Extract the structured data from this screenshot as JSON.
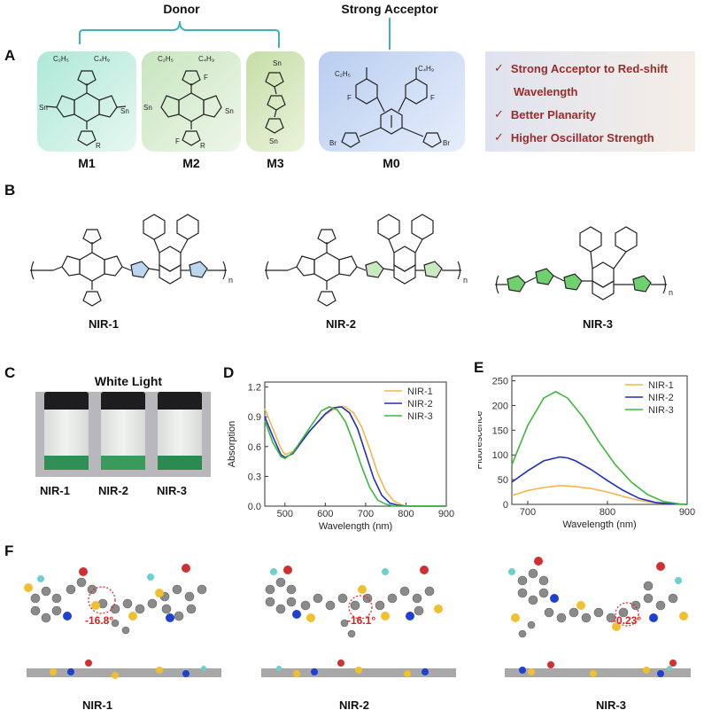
{
  "header": {
    "donor_label": "Donor",
    "acceptor_label": "Strong Acceptor"
  },
  "panel_labels": [
    "A",
    "B",
    "C",
    "D",
    "E",
    "F"
  ],
  "panel_a": {
    "monomers": [
      {
        "label": "M1",
        "color": "#bfe8dc"
      },
      {
        "label": "M2",
        "color": "#d6e8cc"
      },
      {
        "label": "M3",
        "color": "#cfe2b4"
      },
      {
        "label": "M0",
        "color": "#c9d8f2"
      }
    ],
    "substituent_text": {
      "c2h5": "C₂H₅",
      "c4h9": "C₄H₉",
      "sn": "Sn",
      "br": "Br",
      "f": "F",
      "r": "R"
    },
    "features": [
      "Strong Acceptor to Red-shift",
      "Wavelength",
      "Better Planarity",
      "Higher Oscillator Strength"
    ],
    "check_mark": "✓"
  },
  "panel_b": {
    "polymers": [
      "NIR-1",
      "NIR-2",
      "NIR-3"
    ],
    "repeat_label": "n"
  },
  "panel_c": {
    "title": "White Light",
    "vials": [
      "NIR-1",
      "NIR-2",
      "NIR-3"
    ]
  },
  "chart_data": [
    {
      "type": "line",
      "panel": "D",
      "xlabel": "Wavelength (nm)",
      "ylabel": "Absorption",
      "xlim": [
        450,
        900
      ],
      "ylim": [
        0.0,
        1.25
      ],
      "xticks": [
        "500",
        "600",
        "700",
        "800",
        "900"
      ],
      "yticks": [
        "0.0",
        "0.3",
        "0.6",
        "0.9",
        "1.2"
      ],
      "legend": "top-right",
      "series": [
        {
          "name": "NIR-1",
          "color": "#f5b54a",
          "x": [
            450,
            470,
            490,
            500,
            520,
            560,
            600,
            630,
            650,
            670,
            690,
            710,
            730,
            750,
            770,
            790,
            810,
            850,
            900
          ],
          "y": [
            0.98,
            0.78,
            0.58,
            0.52,
            0.55,
            0.75,
            0.92,
            1.0,
            1.0,
            0.94,
            0.8,
            0.58,
            0.33,
            0.15,
            0.05,
            0.01,
            0.0,
            0.0,
            0.0
          ]
        },
        {
          "name": "NIR-2",
          "color": "#1f2fbf",
          "x": [
            450,
            470,
            490,
            500,
            520,
            560,
            600,
            620,
            640,
            660,
            680,
            700,
            720,
            740,
            760,
            780,
            800,
            900
          ],
          "y": [
            0.9,
            0.7,
            0.52,
            0.49,
            0.53,
            0.75,
            0.93,
            0.99,
            1.0,
            0.94,
            0.78,
            0.53,
            0.28,
            0.11,
            0.03,
            0.01,
            0.0,
            0.0
          ]
        },
        {
          "name": "NIR-3",
          "color": "#3db83d",
          "x": [
            450,
            470,
            490,
            500,
            520,
            560,
            590,
            610,
            630,
            650,
            670,
            690,
            710,
            730,
            750,
            770,
            800,
            900
          ],
          "y": [
            0.86,
            0.64,
            0.5,
            0.48,
            0.54,
            0.78,
            0.96,
            1.0,
            0.97,
            0.85,
            0.64,
            0.4,
            0.19,
            0.06,
            0.02,
            0.0,
            0.0,
            0.0
          ]
        }
      ]
    },
    {
      "type": "line",
      "panel": "E",
      "xlabel": "Wavelength (nm)",
      "ylabel": "Fluorescence",
      "xlim": [
        680,
        900
      ],
      "ylim": [
        0,
        260
      ],
      "xticks": [
        "700",
        "800",
        "900"
      ],
      "yticks": [
        "0",
        "50",
        "100",
        "150",
        "200",
        "250"
      ],
      "legend": "top-right",
      "series": [
        {
          "name": "NIR-1",
          "color": "#f5b54a",
          "x": [
            680,
            700,
            720,
            740,
            760,
            780,
            800,
            820,
            840,
            860,
            880,
            900
          ],
          "y": [
            18,
            28,
            34,
            38,
            36,
            32,
            25,
            16,
            8,
            3,
            1,
            0
          ]
        },
        {
          "name": "NIR-2",
          "color": "#1f2fbf",
          "x": [
            680,
            700,
            720,
            740,
            750,
            760,
            780,
            800,
            820,
            840,
            860,
            880,
            900
          ],
          "y": [
            45,
            68,
            88,
            96,
            94,
            88,
            70,
            48,
            28,
            12,
            4,
            1,
            0
          ]
        },
        {
          "name": "NIR-3",
          "color": "#3db83d",
          "x": [
            680,
            700,
            720,
            735,
            750,
            770,
            790,
            810,
            830,
            850,
            870,
            890,
            900
          ],
          "y": [
            80,
            160,
            215,
            228,
            215,
            175,
            125,
            80,
            45,
            20,
            6,
            1,
            0
          ]
        }
      ]
    }
  ],
  "panel_f": {
    "torsion_angles": [
      "-16.8°",
      "-16.1°",
      "-0.23°"
    ],
    "labels": [
      "NIR-1",
      "NIR-2",
      "NIR-3"
    ]
  }
}
